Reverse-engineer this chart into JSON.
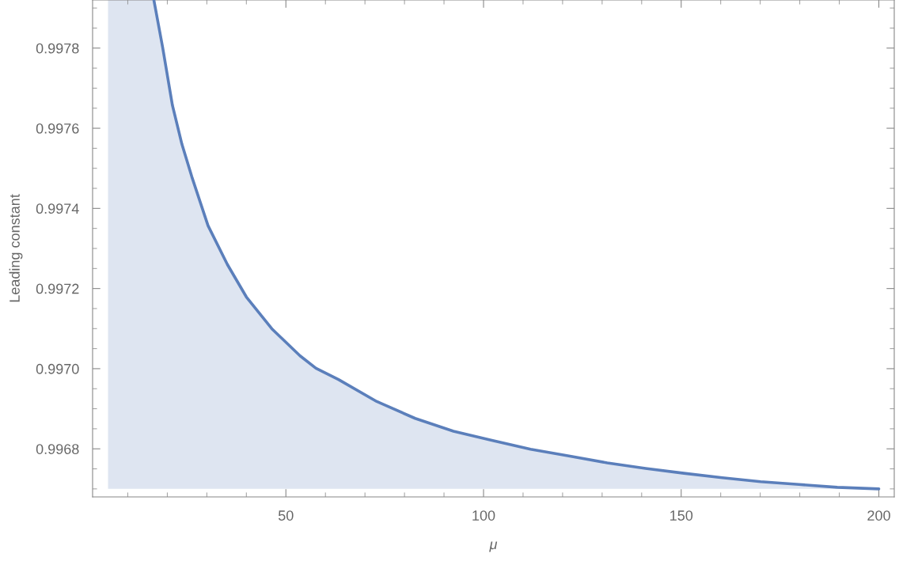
{
  "chart_data": {
    "type": "line",
    "xlabel": "μ",
    "ylabel": "Leading constant",
    "xlim": [
      1.1,
      203.9
    ],
    "ylim": [
      0.99668,
      0.99792
    ],
    "xticks": [
      50,
      100,
      150,
      200
    ],
    "yticks": [
      {
        "value": 0.9968,
        "label": "0.9968"
      },
      {
        "value": 0.997,
        "label": "0.9970"
      },
      {
        "value": 0.9972,
        "label": "0.9972"
      },
      {
        "value": 0.9974,
        "label": "0.9974"
      },
      {
        "value": 0.9976,
        "label": "0.9976"
      },
      {
        "value": 0.9978,
        "label": "0.9978"
      }
    ],
    "grid": false,
    "legend": false,
    "marker": "none",
    "line_style": "solid",
    "series": [
      {
        "color": "#5b7fbb",
        "x": [
          5,
          16.6,
          18.8,
          21.3,
          23.7,
          26.2,
          30.3,
          35.2,
          40.0,
          46.6,
          53.6,
          57.6,
          63.3,
          73.0,
          82.7,
          92.4,
          102.1,
          111.9,
          121.6,
          131.3,
          141.0,
          150.7,
          160.4,
          170.1,
          179.8,
          189.5,
          200
        ],
        "values": [
          null,
          0.99792,
          0.997803,
          0.997657,
          0.99756,
          0.997479,
          0.997357,
          0.99726,
          0.997179,
          0.997098,
          0.997032,
          0.997001,
          0.996973,
          0.996918,
          0.996876,
          0.996844,
          0.996821,
          0.996799,
          0.996782,
          0.996765,
          0.996751,
          0.996739,
          0.996728,
          0.996718,
          0.996711,
          0.996704,
          0.9967
        ],
        "upper": [
          0.99792,
          0.99792,
          0.997803,
          0.997657,
          0.99756,
          0.997479,
          0.997357,
          0.99726,
          0.997179,
          0.997098,
          0.997032,
          0.997001,
          0.996973,
          0.996918,
          0.996876,
          0.996844,
          0.996821,
          0.996799,
          0.996782,
          0.996765,
          0.996751,
          0.996739,
          0.996728,
          0.996718,
          0.996711,
          0.996704,
          0.9967
        ],
        "lower": [
          0.9967,
          0.9967,
          0.9967,
          0.9967,
          0.9967,
          0.9967,
          0.9967,
          0.9967,
          0.9967,
          0.9967,
          0.9967,
          0.9967,
          0.9967,
          0.9967,
          0.9967,
          0.9967,
          0.9967,
          0.9967,
          0.9967,
          0.9967,
          0.9967,
          0.9967,
          0.9967,
          0.9967,
          0.9967,
          0.9967,
          0.9967
        ]
      }
    ]
  }
}
